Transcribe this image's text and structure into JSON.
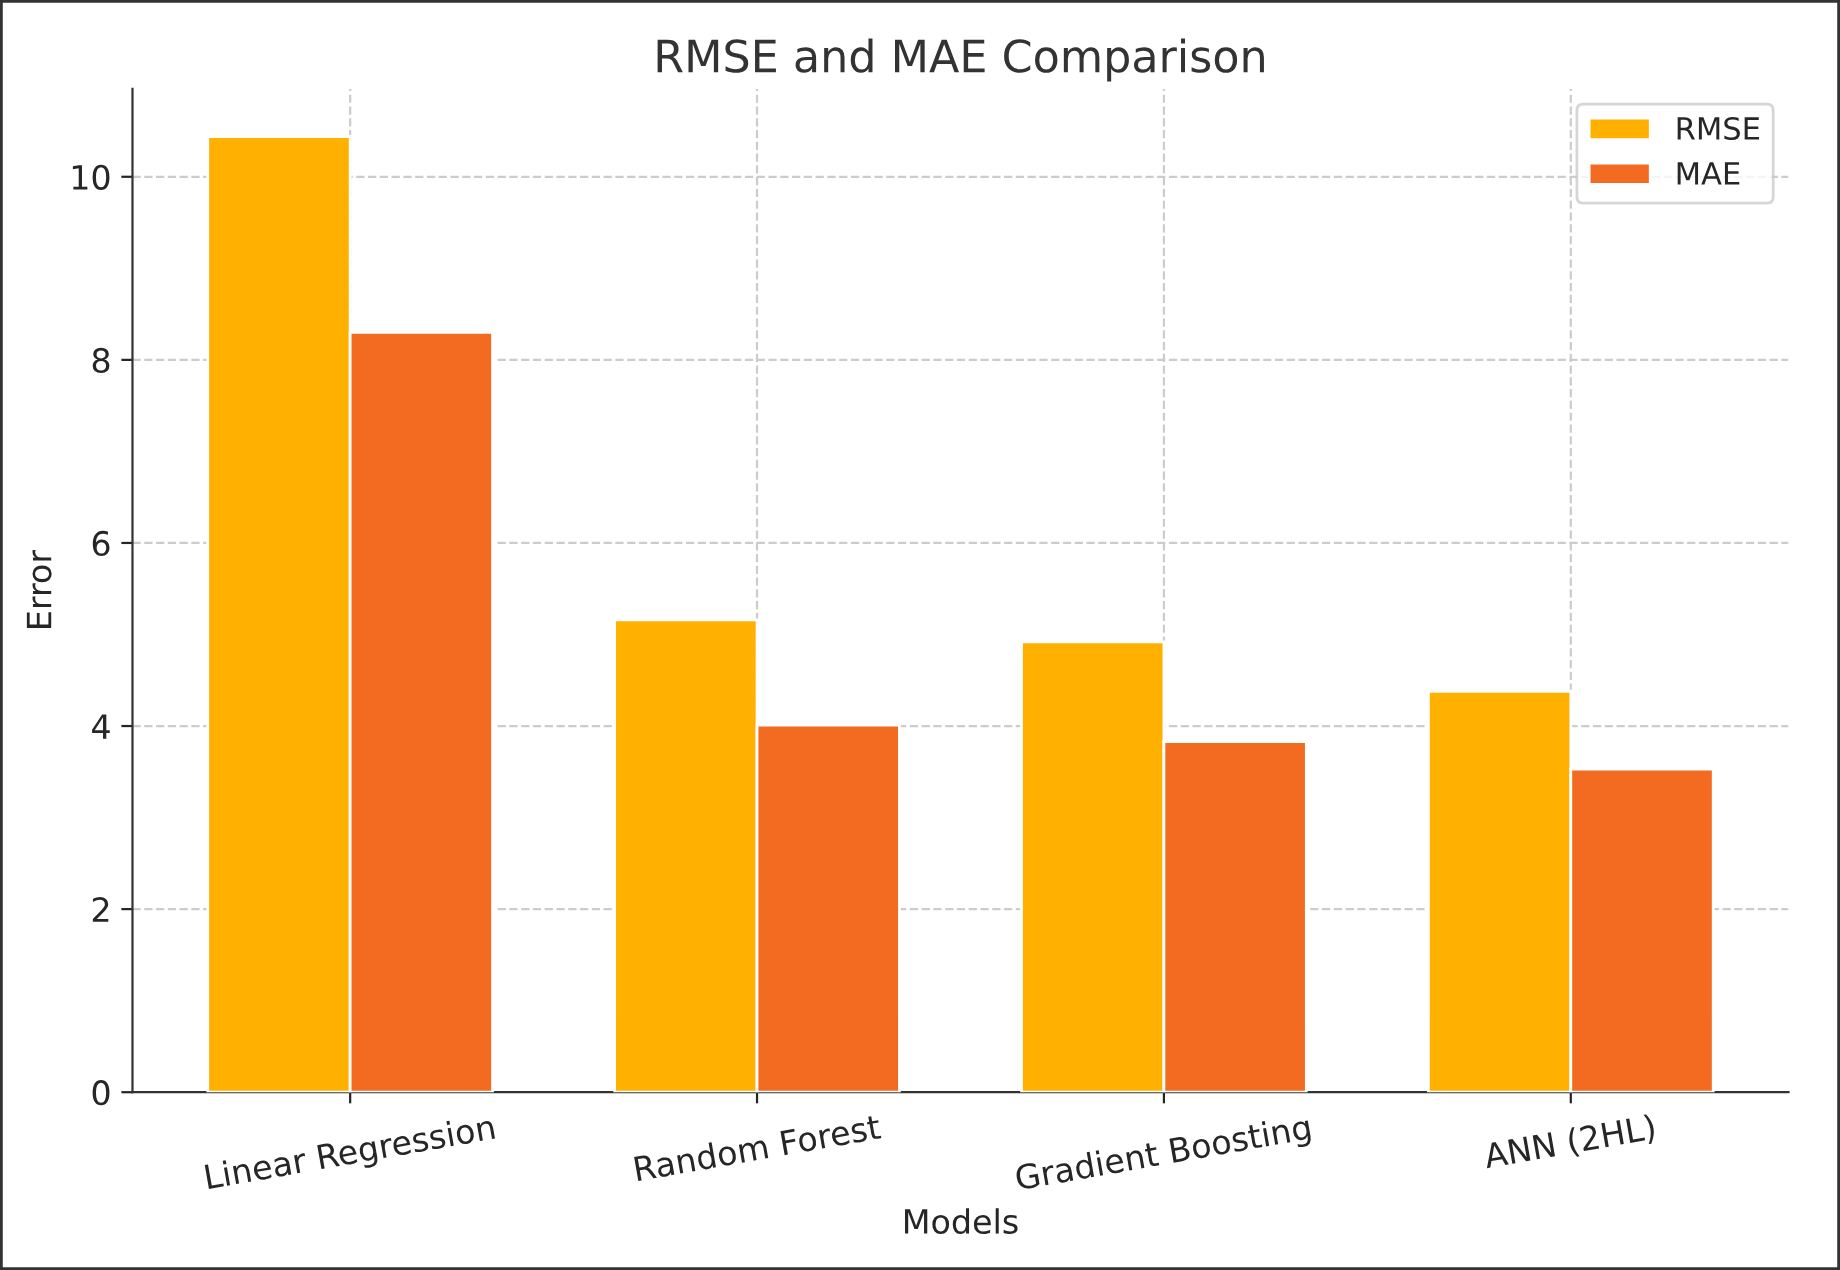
{
  "chart_data": {
    "type": "bar",
    "title": "RMSE and MAE Comparison",
    "xlabel": "Models",
    "ylabel": "Error",
    "categories": [
      "Linear Regression",
      "Random Forest",
      "Gradient Boosting",
      "ANN (2HL)"
    ],
    "series": [
      {
        "name": "RMSE",
        "color": "#ffb000",
        "values": [
          10.44,
          5.16,
          4.92,
          4.38
        ]
      },
      {
        "name": "MAE",
        "color": "#f26b21",
        "values": [
          8.3,
          4.01,
          3.83,
          3.53
        ]
      }
    ],
    "ylim": [
      0,
      10.96
    ],
    "yticks": [
      0,
      2,
      4,
      6,
      8,
      10
    ],
    "grid": true,
    "legend": "top right"
  }
}
